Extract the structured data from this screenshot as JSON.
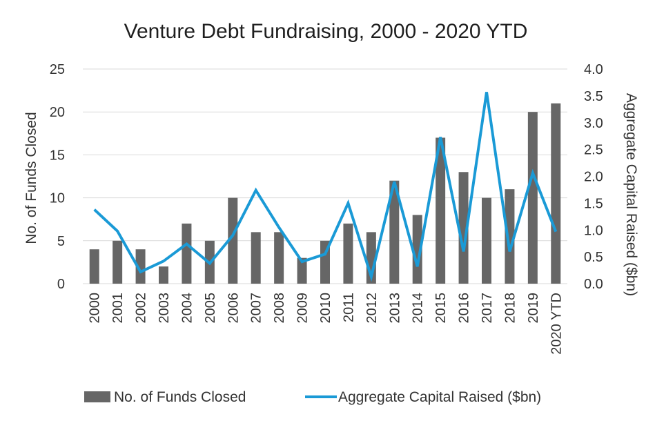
{
  "chart_data": {
    "type": "bar",
    "title": "Venture Debt Fundraising, 2000 - 2020 YTD",
    "categories": [
      "2000",
      "2001",
      "2002",
      "2003",
      "2004",
      "2005",
      "2006",
      "2007",
      "2008",
      "2009",
      "2010",
      "2011",
      "2012",
      "2013",
      "2014",
      "2015",
      "2016",
      "2017",
      "2018",
      "2019",
      "2020 YTD"
    ],
    "series": [
      {
        "name": "No. of Funds Closed",
        "type": "bar",
        "axis": "left",
        "color": "#666666",
        "values": [
          4,
          5,
          4,
          2,
          7,
          5,
          10,
          6,
          6,
          3,
          5,
          7,
          6,
          12,
          8,
          17,
          13,
          10,
          11,
          20,
          21
        ]
      },
      {
        "name": "Aggregate Capital Raised ($bn)",
        "type": "line",
        "axis": "right",
        "color": "#1a9ad6",
        "values": [
          1.38,
          0.98,
          0.22,
          0.42,
          0.74,
          0.38,
          0.9,
          1.74,
          1.05,
          0.41,
          0.55,
          1.5,
          0.13,
          1.9,
          0.32,
          2.73,
          0.6,
          3.57,
          0.6,
          2.06,
          0.97
        ]
      }
    ],
    "ylabel": "No. of Funds Closed",
    "y2label": "Aggregate Capital Raised ($bn)",
    "ylim": [
      0,
      25
    ],
    "y2lim": [
      0,
      4.0
    ],
    "yticks": [
      "0",
      "5",
      "10",
      "15",
      "20",
      "25"
    ],
    "y2ticks": [
      "0.0",
      "0.5",
      "1.0",
      "1.5",
      "2.0",
      "2.5",
      "3.0",
      "3.5",
      "4.0"
    ],
    "grid": true,
    "legend": "bottom"
  }
}
